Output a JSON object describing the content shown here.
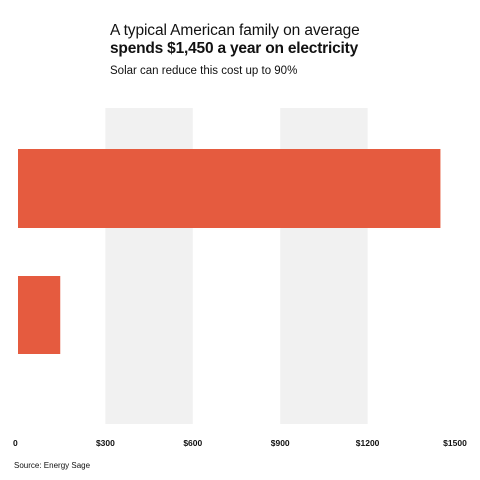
{
  "header": {
    "title_line1": "A typical American family on average",
    "title_line2": "spends $1,450 a year on electricity",
    "subtitle": "Solar can reduce this cost up to 90%"
  },
  "source": "Source: Energy Sage",
  "colors": {
    "bar": "#E55B3F",
    "band": "#F1F1F1",
    "text": "#111111"
  },
  "chart_data": {
    "type": "bar",
    "orientation": "horizontal",
    "title": "A typical American family on average spends $1,450 a year on electricity",
    "subtitle": "Solar can reduce this cost up to 90%",
    "categories": [
      "",
      ""
    ],
    "values": [
      1450,
      145
    ],
    "xlim": [
      0,
      1500
    ],
    "x_tick_values": [
      0,
      300,
      600,
      900,
      1200,
      1500
    ],
    "x_tick_labels": [
      "0",
      "$300",
      "$600",
      "$900",
      "$1200",
      "$1500"
    ],
    "shaded_bands": [
      [
        300,
        600
      ],
      [
        900,
        1200
      ]
    ],
    "xlabel": "",
    "ylabel": "",
    "grid": false,
    "legend": "none"
  }
}
